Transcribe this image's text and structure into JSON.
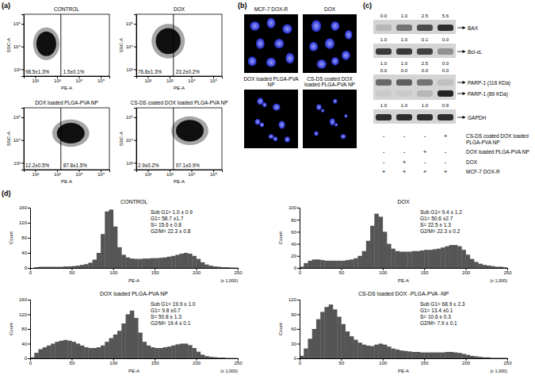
{
  "panel_labels": [
    "(a)",
    "(b)",
    "(c)",
    "(d)"
  ],
  "chart_data": [
    {
      "type": "scatter",
      "title": "CONTROL",
      "x_label": "PE-A",
      "y_label": "SSC-A",
      "log": true,
      "color": "#000000",
      "xlim": [
        30,
        250000
      ],
      "ylim": [
        500,
        262144
      ],
      "xticks": [
        {
          "value": 100,
          "label": "10²"
        },
        {
          "value": 1000,
          "label": "10³"
        },
        {
          "value": 10000,
          "label": "10⁴"
        },
        {
          "value": 100000,
          "label": "10⁵"
        }
      ],
      "yticks": [
        {
          "value": 1000,
          "label": "10³"
        },
        {
          "value": 10000,
          "label": "10⁴"
        },
        {
          "value": 100000,
          "label": "10⁵"
        }
      ],
      "gate": 1500,
      "cloud": {
        "x": [
          80,
          1300
        ],
        "y": [
          2500,
          70000
        ]
      },
      "annotations": [
        "98.5±1.3%",
        "1.5±0.1%"
      ]
    },
    {
      "type": "scatter",
      "title": "DOX",
      "x_label": "PE-A",
      "y_label": "SSC-A",
      "log": true,
      "color": "#000000",
      "xlim": [
        30,
        250000
      ],
      "ylim": [
        500,
        262144
      ],
      "xticks": [
        {
          "value": 100,
          "label": "10²"
        },
        {
          "value": 1000,
          "label": "10³"
        },
        {
          "value": 10000,
          "label": "10⁴"
        },
        {
          "value": 100000,
          "label": "10⁵"
        }
      ],
      "yticks": [
        {
          "value": 1000,
          "label": "10³"
        },
        {
          "value": 10000,
          "label": "10⁴"
        },
        {
          "value": 100000,
          "label": "10⁵"
        }
      ],
      "gate": 1500,
      "cloud": {
        "x": [
          150,
          5000
        ],
        "y": [
          3000,
          100000
        ]
      },
      "annotations": [
        "76.8±1.3%",
        "23.2±0.2%"
      ]
    },
    {
      "type": "scatter",
      "title": "DOX loaded PLGA-PVA NP",
      "x_label": "PE-A",
      "y_label": "SSC-A",
      "log": true,
      "color": "#000000",
      "xlim": [
        30,
        250000
      ],
      "ylim": [
        500,
        262144
      ],
      "xticks": [
        {
          "value": 100,
          "label": "10²"
        },
        {
          "value": 1000,
          "label": "10³"
        },
        {
          "value": 10000,
          "label": "10⁴"
        },
        {
          "value": 100000,
          "label": "10⁵"
        }
      ],
      "yticks": [
        {
          "value": 1000,
          "label": "10³"
        },
        {
          "value": 10000,
          "label": "10⁴"
        },
        {
          "value": 100000,
          "label": "10⁵"
        }
      ],
      "gate": 1500,
      "cloud": {
        "x": [
          600,
          30000
        ],
        "y": [
          5000,
          80000
        ]
      },
      "annotations": [
        "12.2±0.5%",
        "87.8±1.5%"
      ]
    },
    {
      "type": "scatter",
      "title": "CS-DS coated DOX loaded PLGA-PVA NP",
      "x_label": "PE-A",
      "y_label": "SSC-A",
      "log": true,
      "color": "#000000",
      "xlim": [
        30,
        250000
      ],
      "ylim": [
        500,
        262144
      ],
      "xticks": [
        {
          "value": 100,
          "label": "10²"
        },
        {
          "value": 1000,
          "label": "10³"
        },
        {
          "value": 10000,
          "label": "10⁴"
        },
        {
          "value": 100000,
          "label": "10⁵"
        }
      ],
      "yticks": [
        {
          "value": 1000,
          "label": "10³"
        },
        {
          "value": 10000,
          "label": "10⁴"
        },
        {
          "value": 100000,
          "label": "10⁵"
        }
      ],
      "gate": 1500,
      "cloud": {
        "x": [
          1200,
          60000
        ],
        "y": [
          6000,
          110000
        ]
      },
      "annotations": [
        "2.9±0.2%",
        "97.1±0.9%"
      ]
    },
    {
      "type": "histogram",
      "title": "CONTROL",
      "x_label": "PE-A",
      "x_scale_label": "(x 1,000)",
      "y_label": "Count",
      "color": "#555555",
      "xlim": [
        0,
        250
      ],
      "ylim": [
        0,
        160
      ],
      "xticks": [
        0,
        50,
        100,
        150,
        200,
        250
      ],
      "yticks": [
        0,
        40,
        80,
        120,
        160
      ],
      "bins": [
        0,
        5,
        10,
        15,
        20,
        25,
        30,
        35,
        40,
        45,
        50,
        55,
        60,
        65,
        70,
        75,
        80,
        85,
        90,
        95,
        100,
        105,
        110,
        115,
        120,
        125,
        130,
        135,
        140,
        145,
        150,
        155,
        160,
        165,
        170,
        175,
        180,
        185,
        190,
        195,
        200,
        205,
        210,
        215,
        220,
        225,
        230,
        235,
        240,
        245,
        250
      ],
      "counts": [
        0,
        2,
        3,
        3,
        3,
        3,
        3,
        3,
        4,
        4,
        5,
        6,
        8,
        10,
        14,
        22,
        40,
        90,
        150,
        155,
        110,
        55,
        35,
        28,
        25,
        24,
        24,
        25,
        25,
        26,
        26,
        27,
        28,
        30,
        32,
        35,
        38,
        40,
        38,
        32,
        24,
        15,
        9,
        6,
        4,
        3,
        2,
        2,
        1,
        1
      ],
      "annotations": [
        "Sub G1= 1.0 ± 0.9",
        "G1= 58.7 ±1.7",
        "S= 15.6 ± 0.8",
        "G2/M= 22.3 ± 0.8"
      ]
    },
    {
      "type": "histogram",
      "title": "DOX",
      "x_label": "PE-A",
      "x_scale_label": "(x 1,000)",
      "y_label": "Count",
      "color": "#555555",
      "xlim": [
        0,
        250
      ],
      "ylim": [
        0,
        100
      ],
      "xticks": [
        0,
        50,
        100,
        150,
        200,
        250
      ],
      "yticks": [
        0,
        20,
        40,
        60,
        80,
        100
      ],
      "bins": [
        0,
        5,
        10,
        15,
        20,
        25,
        30,
        35,
        40,
        45,
        50,
        55,
        60,
        65,
        70,
        75,
        80,
        85,
        90,
        95,
        100,
        105,
        110,
        115,
        120,
        125,
        130,
        135,
        140,
        145,
        150,
        155,
        160,
        165,
        170,
        175,
        180,
        185,
        190,
        195,
        200,
        205,
        210,
        215,
        220,
        225,
        230,
        235,
        240,
        245,
        250
      ],
      "counts": [
        2,
        8,
        12,
        14,
        14,
        13,
        12,
        12,
        12,
        12,
        12,
        13,
        14,
        16,
        20,
        28,
        45,
        70,
        90,
        85,
        60,
        40,
        32,
        28,
        27,
        27,
        27,
        28,
        28,
        29,
        30,
        30,
        31,
        32,
        34,
        36,
        38,
        38,
        36,
        30,
        22,
        15,
        10,
        7,
        5,
        4,
        3,
        2,
        2,
        1
      ],
      "annotations": [
        "Sub G1= 9.4 ± 1.2",
        "G1= 50.6 ±2.7",
        "S= 22.5 ± 1.3",
        "G2/M= 22.3 ± 0.2"
      ]
    },
    {
      "type": "histogram",
      "title": "DOX loaded PLGA-PVA NP",
      "x_label": "PE-A",
      "x_scale_label": "(x 1,000)",
      "y_label": "Count",
      "color": "#555555",
      "xlim": [
        0,
        250
      ],
      "ylim": [
        0,
        160
      ],
      "xticks": [
        0,
        50,
        100,
        150,
        200,
        250
      ],
      "yticks": [
        0,
        40,
        80,
        120,
        160
      ],
      "bins": [
        0,
        5,
        10,
        15,
        20,
        25,
        30,
        35,
        40,
        45,
        50,
        55,
        60,
        65,
        70,
        75,
        80,
        85,
        90,
        95,
        100,
        105,
        110,
        115,
        120,
        125,
        130,
        135,
        140,
        145,
        150,
        155,
        160,
        165,
        170,
        175,
        180,
        185,
        190,
        195,
        200,
        205,
        210,
        215,
        220,
        225,
        230,
        235,
        240,
        245,
        250
      ],
      "counts": [
        3,
        15,
        25,
        30,
        35,
        40,
        45,
        48,
        50,
        48,
        45,
        40,
        35,
        30,
        28,
        28,
        30,
        35,
        45,
        55,
        65,
        75,
        95,
        120,
        130,
        110,
        70,
        45,
        35,
        30,
        28,
        28,
        30,
        32,
        35,
        38,
        40,
        40,
        36,
        28,
        18,
        10,
        6,
        4,
        3,
        2,
        2,
        1,
        1,
        1
      ],
      "annotations": [
        "Sub G1= 19.9 ± 1.0",
        "G1= 9.8 ±0.7",
        "S= 50.8 ± 1.3",
        "G2/M= 19.4 ± 0.1"
      ]
    },
    {
      "type": "histogram",
      "title": "CS-DS loaded DOX -PLGA-PVA -NP",
      "x_label": "PE-A",
      "x_scale_label": "(x 1,000)",
      "y_label": "Count",
      "color": "#555555",
      "xlim": [
        0,
        250
      ],
      "ylim": [
        0,
        120
      ],
      "xticks": [
        0,
        50,
        100,
        150,
        200,
        250
      ],
      "yticks": [
        0,
        30,
        60,
        90,
        120
      ],
      "bins": [
        0,
        5,
        10,
        15,
        20,
        25,
        30,
        35,
        40,
        45,
        50,
        55,
        60,
        65,
        70,
        75,
        80,
        85,
        90,
        95,
        100,
        105,
        110,
        115,
        120,
        125,
        130,
        135,
        140,
        145,
        150,
        155,
        160,
        165,
        170,
        175,
        180,
        185,
        190,
        195,
        200,
        205,
        210,
        215,
        220,
        225,
        230,
        235,
        240,
        245,
        250
      ],
      "counts": [
        5,
        20,
        40,
        60,
        80,
        95,
        105,
        110,
        100,
        85,
        70,
        55,
        45,
        38,
        32,
        28,
        26,
        25,
        28,
        30,
        28,
        24,
        20,
        18,
        16,
        15,
        14,
        13,
        13,
        12,
        12,
        12,
        12,
        12,
        12,
        13,
        13,
        12,
        11,
        9,
        7,
        5,
        4,
        3,
        2,
        2,
        1,
        1,
        1,
        1
      ],
      "annotations": [
        "Sub G1= 68.9 ± 2.3",
        "G1= 13.4 ±0.1",
        "S= 10.6 ± 0.3",
        "G2/M= 7.9 ± 0.1"
      ]
    }
  ],
  "microscopy": {
    "titles": [
      "MCF-7 DOX-R",
      "DOX",
      "DOX loaded PLGA-PVA NP",
      "CS-DS coated DOX loaded PLGA-PVA NP"
    ]
  },
  "western_blot": {
    "rows": [
      {
        "numbers": [
          "0.0",
          "1.0",
          "2.5",
          "5.6"
        ]
      },
      {
        "bands": [
          {
            "label": "BAX",
            "intensity": [
              0.15,
              0.5,
              0.7,
              0.85
            ]
          }
        ]
      },
      {
        "numbers": [
          "1.0",
          "1.0",
          "0.1",
          "0.0"
        ]
      },
      {
        "bands": [
          {
            "label": "Bcl-xL",
            "intensity": [
              0.8,
              0.8,
              0.75,
              0.35
            ]
          }
        ]
      },
      {
        "numbers": [
          "1.0",
          "1.0",
          "2.5",
          "0.0"
        ]
      },
      {
        "numbers": [
          "0.0",
          "0.0",
          "0.0",
          "0.0"
        ]
      },
      {
        "bands": [
          {
            "label": "PARP-1 (116 KDa)",
            "intensity": [
              0.55,
              0.6,
              0.5,
              0.1
            ]
          },
          {
            "label": "PARP-1 (89 KDa)",
            "intensity": [
              0.05,
              0.05,
              0.15,
              0.9
            ]
          }
        ]
      },
      {
        "numbers": [
          "1.0",
          "1.0",
          "1.0",
          "0.9"
        ]
      },
      {
        "bands": [
          {
            "label": "GAPDH",
            "intensity": [
              0.85,
              0.85,
              0.85,
              0.85
            ]
          }
        ]
      }
    ],
    "treatments": [
      {
        "label": "CS-DS coated DOX loaded PLGA-PVA NP",
        "signs": [
          "-",
          "-",
          "-",
          "+"
        ]
      },
      {
        "label": "DOX loaded PLGA-PVA NP",
        "signs": [
          "-",
          "-",
          "+",
          "-"
        ]
      },
      {
        "label": "DOX",
        "signs": [
          "-",
          "+",
          "-",
          "-"
        ]
      },
      {
        "label": "MCF-7 DOX-R",
        "signs": [
          "+",
          "+",
          "+",
          "+"
        ]
      }
    ]
  }
}
